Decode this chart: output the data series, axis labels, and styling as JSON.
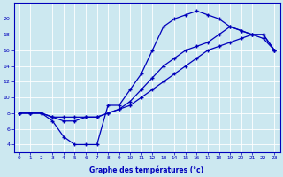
{
  "line1_x": [
    0,
    1,
    2,
    3,
    4,
    5,
    6,
    7,
    8,
    9,
    10,
    11,
    12,
    13,
    14,
    15,
    16,
    17,
    18,
    19,
    20,
    21,
    22,
    23
  ],
  "line1_y": [
    8,
    8,
    8,
    7,
    5,
    4,
    4,
    4,
    9,
    9,
    11,
    13,
    16,
    19,
    20,
    20.5,
    21,
    20.5,
    20,
    19,
    18.5,
    18,
    18,
    16
  ],
  "line2_x": [
    0,
    1,
    2,
    3,
    4,
    5,
    6,
    7,
    8,
    9,
    10,
    11,
    12,
    13,
    14,
    15,
    16,
    17,
    18,
    19,
    20,
    21,
    22,
    23
  ],
  "line2_y": [
    8,
    8,
    8,
    7.5,
    7.5,
    7.5,
    7.5,
    7.5,
    8,
    8.5,
    9,
    10,
    11,
    12,
    13,
    14,
    15,
    16,
    16.5,
    17,
    17.5,
    18,
    18,
    16
  ],
  "line3_x": [
    0,
    1,
    2,
    3,
    4,
    5,
    6,
    7,
    8,
    9,
    10,
    11,
    12,
    13,
    14,
    15,
    16,
    17,
    18,
    19,
    20,
    21,
    22,
    23
  ],
  "line3_y": [
    8,
    8,
    8,
    7.5,
    7,
    7,
    7.5,
    7.5,
    8,
    8.5,
    9.5,
    11,
    12.5,
    14,
    15,
    16,
    16.5,
    17,
    18,
    19,
    18.5,
    18,
    17.5,
    16
  ],
  "line_color": "#0000bb",
  "marker": "+",
  "bg_color": "#cce8f0",
  "grid_color": "#ffffff",
  "xlabel": "Graphe des températures (°c)",
  "xlabel_color": "#0000bb",
  "ylabel_ticks": [
    4,
    6,
    8,
    10,
    12,
    14,
    16,
    18,
    20
  ],
  "xtick_labels": [
    "0",
    "1",
    "2",
    "3",
    "4",
    "5",
    "6",
    "7",
    "8",
    "9",
    "10",
    "11",
    "12",
    "13",
    "14",
    "15",
    "16",
    "17",
    "18",
    "19",
    "20",
    "21",
    "22",
    "23"
  ],
  "ylim": [
    3,
    22
  ],
  "xlim": [
    -0.5,
    23.5
  ],
  "figw": 3.2,
  "figh": 2.0,
  "dpi": 100
}
